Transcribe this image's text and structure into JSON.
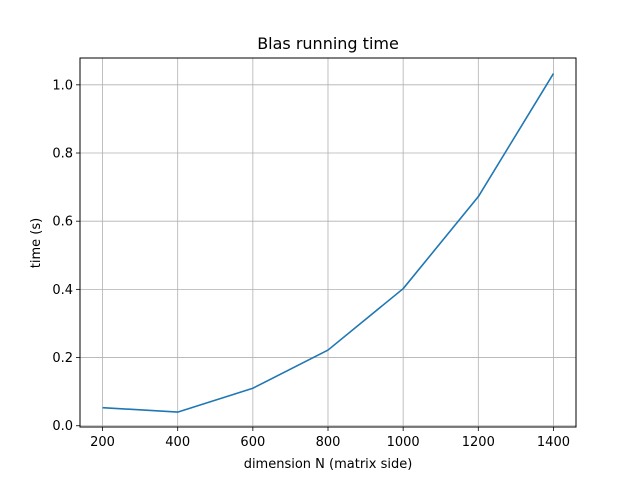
{
  "chart_data": {
    "type": "line",
    "title": "Blas running time",
    "xlabel": "dimension N (matrix side)",
    "ylabel": "time (s)",
    "x": [
      200,
      400,
      600,
      800,
      1000,
      1200,
      1400
    ],
    "series": [
      {
        "values": [
          0.053,
          0.04,
          0.11,
          0.222,
          0.402,
          0.672,
          1.033
        ]
      }
    ],
    "xlim": [
      140,
      1460
    ],
    "ylim": [
      -0.0037,
      1.0787
    ],
    "xticks": [
      200,
      400,
      600,
      800,
      1000,
      1200,
      1400
    ],
    "yticks": [
      0.0,
      0.2,
      0.4,
      0.6,
      0.8,
      1.0
    ],
    "xtick_labels": [
      "200",
      "400",
      "600",
      "800",
      "1000",
      "1200",
      "1400"
    ],
    "ytick_labels": [
      "0.0",
      "0.2",
      "0.4",
      "0.6",
      "0.8",
      "1.0"
    ],
    "grid": true,
    "colors": {
      "line": "#1f77b4",
      "grid": "#b0b0b0",
      "axes": "#000000"
    }
  }
}
